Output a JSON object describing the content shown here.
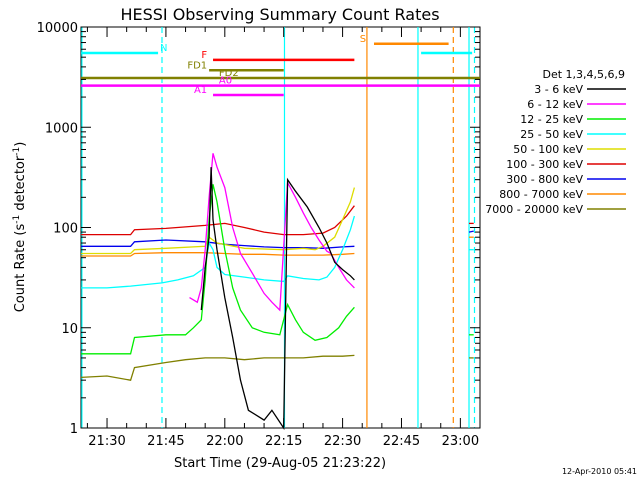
{
  "chart_data": {
    "type": "line",
    "title": "HESSI Observing Summary Count Rates",
    "xlabel": "Start Time (29-Aug-05 21:23:22)",
    "ylabel_main": "Count Rate (s",
    "ylabel_exp1": "-1",
    "ylabel_mid": " detector",
    "ylabel_exp2": "-1",
    "ylabel_end": ")",
    "y_scale": "log",
    "ylim": [
      1,
      10000
    ],
    "y_ticks": [
      {
        "value": 1,
        "label": "1"
      },
      {
        "value": 10,
        "label": "10"
      },
      {
        "value": 100,
        "label": "100"
      },
      {
        "value": 1000,
        "label": "1000"
      },
      {
        "value": 10000,
        "label": "10000"
      }
    ],
    "xlim_min": [
      1283.37,
      1385
    ],
    "x_ticks": [
      {
        "min": 1290,
        "label": "21:30"
      },
      {
        "min": 1305,
        "label": "21:45"
      },
      {
        "min": 1320,
        "label": "22:00"
      },
      {
        "min": 1335,
        "label": "22:15"
      },
      {
        "min": 1350,
        "label": "22:30"
      },
      {
        "min": 1365,
        "label": "22:45"
      },
      {
        "min": 1380,
        "label": "23:00"
      }
    ],
    "legend_title": "Det 1,3,4,5,6,9",
    "series": [
      {
        "name": "3 - 6 keV",
        "color": "#000000",
        "points": [
          [
            1314,
            15
          ],
          [
            1315,
            40
          ],
          [
            1316,
            80
          ],
          [
            1316.5,
            400
          ],
          [
            1317,
            120
          ],
          [
            1318,
            60
          ],
          [
            1320,
            20
          ],
          [
            1322,
            8
          ],
          [
            1324,
            3
          ],
          [
            1326,
            1.5
          ],
          [
            1330,
            1.2
          ],
          [
            1332,
            1.5
          ],
          [
            1335,
            1
          ],
          [
            1336,
            300
          ],
          [
            1338,
            230
          ],
          [
            1341,
            160
          ],
          [
            1344,
            100
          ],
          [
            1346,
            70
          ],
          [
            1348,
            45
          ],
          [
            1350,
            38
          ],
          [
            1352,
            33
          ],
          [
            1353,
            30
          ]
        ]
      },
      {
        "name": "6 - 12 keV",
        "color": "#ff00ff",
        "points": [
          [
            1311,
            20
          ],
          [
            1313,
            18
          ],
          [
            1314,
            25
          ],
          [
            1315,
            60
          ],
          [
            1316,
            200
          ],
          [
            1317,
            550
          ],
          [
            1318,
            400
          ],
          [
            1320,
            250
          ],
          [
            1322,
            100
          ],
          [
            1324,
            55
          ],
          [
            1327,
            35
          ],
          [
            1330,
            22
          ],
          [
            1332,
            18
          ],
          [
            1334,
            15
          ],
          [
            1336,
            280
          ],
          [
            1338,
            200
          ],
          [
            1340,
            140
          ],
          [
            1342,
            100
          ],
          [
            1344,
            75
          ],
          [
            1346,
            58
          ],
          [
            1347,
            55
          ],
          [
            1349,
            40
          ],
          [
            1351,
            30
          ],
          [
            1353,
            25
          ]
        ]
      },
      {
        "name": "12 - 25 keV",
        "color": "#00ee00",
        "points": [
          [
            1283.4,
            5.5
          ],
          [
            1296,
            5.5
          ],
          [
            1297,
            8
          ],
          [
            1305,
            8.5
          ],
          [
            1310,
            8.5
          ],
          [
            1312,
            10
          ],
          [
            1314,
            12
          ],
          [
            1315,
            30
          ],
          [
            1316,
            120
          ],
          [
            1317,
            270
          ],
          [
            1318,
            180
          ],
          [
            1320,
            60
          ],
          [
            1322,
            25
          ],
          [
            1324,
            15
          ],
          [
            1327,
            10
          ],
          [
            1330,
            9
          ],
          [
            1334,
            8.5
          ],
          [
            1336,
            17
          ],
          [
            1338,
            12
          ],
          [
            1340,
            9
          ],
          [
            1343,
            7.5
          ],
          [
            1346,
            8
          ],
          [
            1349,
            10
          ],
          [
            1351,
            13
          ],
          [
            1353,
            16
          ]
        ]
      },
      {
        "name": "25 - 50 keV",
        "color": "#00ffff",
        "points": [
          [
            1283.4,
            25
          ],
          [
            1290,
            25
          ],
          [
            1296,
            26
          ],
          [
            1300,
            27
          ],
          [
            1304,
            28
          ],
          [
            1308,
            30
          ],
          [
            1312,
            33
          ],
          [
            1315,
            40
          ],
          [
            1316,
            70
          ],
          [
            1317,
            60
          ],
          [
            1318,
            40
          ],
          [
            1320,
            34
          ],
          [
            1325,
            32
          ],
          [
            1330,
            30
          ],
          [
            1335,
            29
          ],
          [
            1336,
            33
          ],
          [
            1340,
            31
          ],
          [
            1344,
            30
          ],
          [
            1346,
            32
          ],
          [
            1348,
            40
          ],
          [
            1350,
            60
          ],
          [
            1352,
            95
          ],
          [
            1353,
            130
          ]
        ]
      },
      {
        "name": "50 - 100 keV",
        "color": "#dddd00",
        "points": [
          [
            1283.4,
            55
          ],
          [
            1296,
            55
          ],
          [
            1297,
            60
          ],
          [
            1305,
            62
          ],
          [
            1315,
            65
          ],
          [
            1316,
            80
          ],
          [
            1318,
            70
          ],
          [
            1325,
            62
          ],
          [
            1335,
            60
          ],
          [
            1340,
            62
          ],
          [
            1343,
            60
          ],
          [
            1345,
            65
          ],
          [
            1348,
            80
          ],
          [
            1350,
            120
          ],
          [
            1352,
            180
          ],
          [
            1353,
            250
          ]
        ]
      },
      {
        "name": "100 - 300 keV",
        "color": "#dd0000",
        "points": [
          [
            1283.4,
            85
          ],
          [
            1296,
            85
          ],
          [
            1297,
            95
          ],
          [
            1305,
            98
          ],
          [
            1315,
            105
          ],
          [
            1320,
            110
          ],
          [
            1325,
            100
          ],
          [
            1330,
            90
          ],
          [
            1335,
            85
          ],
          [
            1340,
            85
          ],
          [
            1345,
            88
          ],
          [
            1348,
            100
          ],
          [
            1351,
            130
          ],
          [
            1353,
            165
          ]
        ]
      },
      {
        "name": "300 - 800 keV",
        "color": "#0000ee",
        "points": [
          [
            1283.4,
            65
          ],
          [
            1296,
            65
          ],
          [
            1297,
            72
          ],
          [
            1305,
            75
          ],
          [
            1315,
            72
          ],
          [
            1320,
            68
          ],
          [
            1325,
            66
          ],
          [
            1330,
            64
          ],
          [
            1335,
            63
          ],
          [
            1340,
            63
          ],
          [
            1345,
            62
          ],
          [
            1350,
            64
          ],
          [
            1353,
            65
          ]
        ]
      },
      {
        "name": "800 - 7000 keV",
        "color": "#ff8800",
        "points": [
          [
            1283.4,
            52
          ],
          [
            1296,
            52
          ],
          [
            1297,
            55
          ],
          [
            1305,
            56
          ],
          [
            1315,
            56
          ],
          [
            1320,
            55
          ],
          [
            1325,
            54
          ],
          [
            1330,
            54
          ],
          [
            1335,
            53
          ],
          [
            1340,
            53
          ],
          [
            1345,
            53
          ],
          [
            1350,
            54
          ],
          [
            1353,
            55
          ]
        ]
      },
      {
        "name": "7000 - 20000 keV",
        "color": "#808000",
        "points": [
          [
            1283.4,
            3.2
          ],
          [
            1290,
            3.3
          ],
          [
            1296,
            3
          ],
          [
            1297,
            4
          ],
          [
            1305,
            4.5
          ],
          [
            1310,
            4.8
          ],
          [
            1315,
            5
          ],
          [
            1320,
            5
          ],
          [
            1325,
            4.8
          ],
          [
            1330,
            5
          ],
          [
            1335,
            5
          ],
          [
            1340,
            5
          ],
          [
            1345,
            5.2
          ],
          [
            1350,
            5.2
          ],
          [
            1353,
            5.3
          ]
        ]
      }
    ],
    "late_segments": [
      {
        "color": "#dd0000",
        "points": [
          [
            1382.2,
            110
          ],
          [
            1383.4,
            110
          ]
        ]
      },
      {
        "color": "#0000ee",
        "points": [
          [
            1382.2,
            90
          ],
          [
            1383.4,
            92
          ]
        ]
      },
      {
        "color": "#ff8800",
        "points": [
          [
            1382.2,
            80
          ],
          [
            1383.4,
            80
          ]
        ]
      },
      {
        "color": "#00ffff",
        "points": [
          [
            1382.2,
            60
          ],
          [
            1383.4,
            60
          ]
        ]
      },
      {
        "color": "#00ee00",
        "points": [
          [
            1382.2,
            8.5
          ],
          [
            1383.4,
            8.5
          ]
        ]
      },
      {
        "color": "#808000",
        "points": [
          [
            1382.2,
            5
          ],
          [
            1383.4,
            5
          ]
        ]
      }
    ],
    "flag_bars": [
      {
        "color": "#00ffff",
        "y": 5500,
        "x0": 1283.4,
        "x1": 1303,
        "label": "N",
        "label_x": 1303.5,
        "label_side": "right"
      },
      {
        "color": "#00ffff",
        "y": 5500,
        "x0": 1370,
        "x1": 1383,
        "label": "",
        "label_x": 1370,
        "label_side": "right"
      },
      {
        "color": "#ff0000",
        "y": 4700,
        "x0": 1317,
        "x1": 1353,
        "label": "F",
        "label_x": 1315.5,
        "label_side": "left"
      },
      {
        "color": "#808000",
        "y": 3700,
        "x0": 1316,
        "x1": 1335,
        "label": "FD1",
        "label_x": 1315.5,
        "label_side": "left"
      },
      {
        "color": "#808000",
        "y": 3100,
        "x0": 1283.4,
        "x1": 1385,
        "label": "FD2",
        "label_x": 1318.5,
        "label_side": "right"
      },
      {
        "color": "#ff00ff",
        "y": 2600,
        "x0": 1283.4,
        "x1": 1385,
        "label": "A0",
        "label_x": 1318.5,
        "label_side": "right"
      },
      {
        "color": "#ff00ff",
        "y": 2100,
        "x0": 1317,
        "x1": 1335,
        "label": "A1",
        "label_x": 1315.5,
        "label_side": "left"
      },
      {
        "color": "#ff8800",
        "y": 6800,
        "x0": 1358,
        "x1": 1377,
        "label": "S",
        "label_x": 1356,
        "label_side": "left"
      }
    ],
    "vlines": [
      {
        "x": 1283.6,
        "color": "#00ffff",
        "dashed": false
      },
      {
        "x": 1304.0,
        "color": "#00ffff",
        "dashed": true
      },
      {
        "x": 1335.2,
        "color": "#00ffff",
        "dashed": false
      },
      {
        "x": 1356.2,
        "color": "#ff8800",
        "dashed": false
      },
      {
        "x": 1369.2,
        "color": "#00ffff",
        "dashed": false
      },
      {
        "x": 1378.2,
        "color": "#ff8800",
        "dashed": true
      },
      {
        "x": 1382.2,
        "color": "#00ffff",
        "dashed": false
      },
      {
        "x": 1383.6,
        "color": "#00ffff",
        "dashed": true
      }
    ],
    "timestamp": "12-Apr-2010 05:41"
  }
}
